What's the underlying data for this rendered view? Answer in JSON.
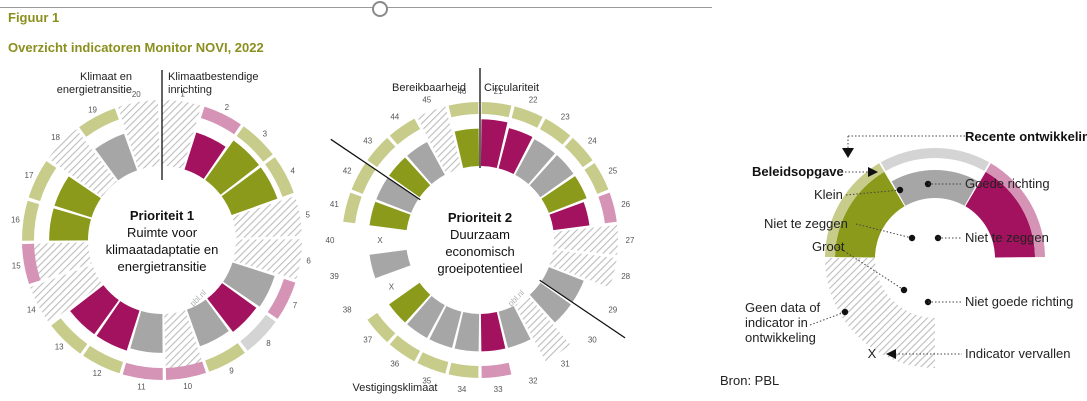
{
  "figure": {
    "label": "Figuur 1",
    "title": "Overzicht indicatoren Monitor NOVI, 2022"
  },
  "colors": {
    "positive": "#8b9a1a",
    "positive_light": "#c8cc8a",
    "neutral": "#a6a6a6",
    "neutral_light": "#d4d4d4",
    "negative": "#a3125e",
    "negative_light": "#d593b6",
    "nodata_hatch": "#bdbdbd"
  },
  "wheels": [
    {
      "id": "priority1",
      "title": "Prioriteit 1",
      "subtitle_lines": [
        "Ruimte voor",
        "klimaatadaptatie en",
        "energietransitie"
      ],
      "credit": "pbl.nl",
      "first_number": 1,
      "start_angle": -1,
      "sectors": [
        {
          "label_lines": [
            "Klimaat en",
            "energietransitie"
          ],
          "start_index": 0
        },
        {
          "label_lines": [
            "Klimaatbestendige",
            "inrichting"
          ],
          "start_index": 10
        }
      ],
      "indicators": [
        {
          "state": "nodata",
          "recent": "none",
          "size": 1.0
        },
        {
          "state": "negative",
          "recent": "negative",
          "size": 0.72
        },
        {
          "state": "positive",
          "recent": "positive",
          "size": 0.9
        },
        {
          "state": "positive",
          "recent": "positive",
          "size": 0.9
        },
        {
          "state": "nodata",
          "recent": "none",
          "size": 1.0
        },
        {
          "state": "nodata",
          "recent": "none",
          "size": 1.0
        },
        {
          "state": "neutral",
          "recent": "negative",
          "size": 0.82
        },
        {
          "state": "negative",
          "recent": "neutral",
          "size": 0.78
        },
        {
          "state": "neutral",
          "recent": "positive",
          "size": 0.72
        },
        {
          "state": "nodata",
          "recent": "negative",
          "size": 1.0
        },
        {
          "state": "neutral",
          "recent": "negative",
          "size": 0.72
        },
        {
          "state": "negative",
          "recent": "positive",
          "size": 0.78
        },
        {
          "state": "negative",
          "recent": "positive",
          "size": 0.78
        },
        {
          "state": "nodata",
          "recent": "none",
          "size": 1.0
        },
        {
          "state": "nodata",
          "recent": "negative",
          "size": 1.0
        },
        {
          "state": "positive",
          "recent": "positive",
          "size": 0.72
        },
        {
          "state": "positive",
          "recent": "positive",
          "size": 0.72
        },
        {
          "state": "nodata",
          "recent": "none",
          "size": 1.0
        },
        {
          "state": "neutral",
          "recent": "positive",
          "size": 0.72
        },
        {
          "state": "nodata",
          "recent": "none",
          "size": 1.0
        }
      ]
    },
    {
      "id": "priority2",
      "title": "Prioriteit 2",
      "subtitle_lines": [
        "Duurzaam",
        "economisch",
        "groeipotentieel"
      ],
      "credit": "pbl.nl",
      "first_number": 21,
      "start_angle": 0,
      "sectors": [
        {
          "label_lines": [
            "Circulariteit"
          ],
          "start_index": 0
        },
        {
          "label_lines": [
            "Vestigingsklimaat"
          ],
          "start_index": 6
        },
        {
          "label_lines": [
            "Bereikbaarheid"
          ],
          "start_index": 13
        }
      ],
      "indicators": [
        {
          "state": "negative",
          "recent": "positive",
          "size": 0.9
        },
        {
          "state": "negative",
          "recent": "positive",
          "size": 0.8
        },
        {
          "state": "neutral",
          "recent": "positive",
          "size": 0.78
        },
        {
          "state": "neutral",
          "recent": "positive",
          "size": 0.78
        },
        {
          "state": "positive",
          "recent": "positive",
          "size": 0.78
        },
        {
          "state": "negative",
          "recent": "negative",
          "size": 0.7
        },
        {
          "state": "nodata",
          "recent": "none",
          "size": 1.0
        },
        {
          "state": "nodata",
          "recent": "none",
          "size": 1.0
        },
        {
          "state": "neutral",
          "recent": "none",
          "size": 0.72
        },
        {
          "state": "neutral",
          "recent": "none",
          "size": 0.72
        },
        {
          "state": "nodata",
          "recent": "none",
          "size": 1.0
        },
        {
          "state": "neutral",
          "recent": "none",
          "size": 0.72
        },
        {
          "state": "negative",
          "recent": "negative",
          "size": 0.72
        },
        {
          "state": "neutral",
          "recent": "positive",
          "size": 0.72
        },
        {
          "state": "neutral",
          "recent": "positive",
          "size": 0.72
        },
        {
          "state": "neutral",
          "recent": "positive",
          "size": 0.72
        },
        {
          "state": "positive",
          "recent": "positive",
          "size": 0.72
        },
        {
          "state": "vervallen",
          "recent": "none",
          "size": 0.0
        },
        {
          "state": "neutral",
          "recent": "none",
          "size": 0.72
        },
        {
          "state": "vervallen",
          "recent": "none",
          "size": 0.0
        },
        {
          "state": "positive",
          "recent": "positive",
          "size": 0.72
        },
        {
          "state": "neutral",
          "recent": "positive",
          "size": 0.72
        },
        {
          "state": "positive",
          "recent": "positive",
          "size": 0.72
        },
        {
          "state": "neutral",
          "recent": "positive",
          "size": 0.72
        },
        {
          "state": "nodata",
          "recent": "none",
          "size": 1.0
        },
        {
          "state": "positive",
          "recent": "positive",
          "size": 0.72
        }
      ],
      "bottom_label": "Vestigingsklimaat"
    }
  ],
  "legend": {
    "recent": "Recente ontwikkeling",
    "beleidsopgave": "Beleidsopgave",
    "klein": "Klein",
    "groot": "Groot",
    "niet_te_zeggen_left": "Niet te zeggen",
    "goede_richting": "Goede richting",
    "niet_te_zeggen_right": "Niet te zeggen",
    "niet_goede_richting": "Niet goede richting",
    "geen_data": [
      "Geen data of",
      "indicator in",
      "ontwikkeling"
    ],
    "vervallen_marker": "X",
    "vervallen": "Indicator vervallen",
    "source": "Bron: PBL"
  }
}
